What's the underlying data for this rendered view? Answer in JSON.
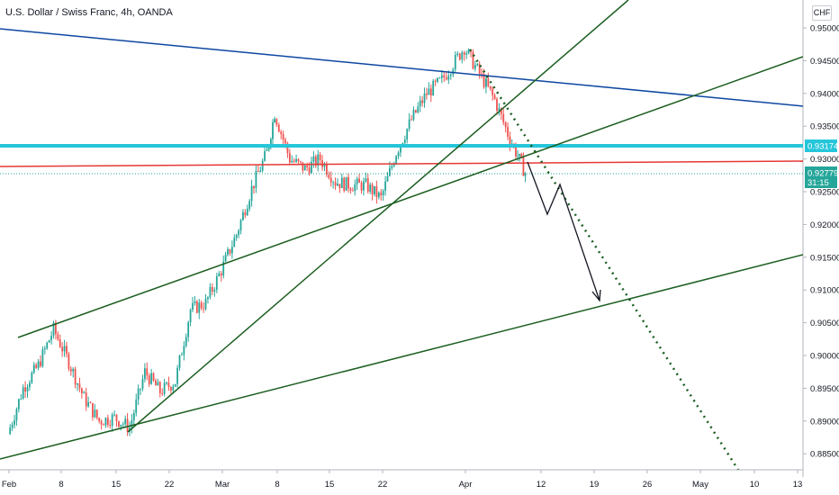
{
  "header": {
    "title": "U.S. Dollar / Swiss Franc, 4h, OANDA",
    "currency": "CHF"
  },
  "colors": {
    "up": "#26a69a",
    "down": "#ef5350",
    "trendline": "#1b5e20",
    "channel_top": "#0d47a1",
    "support_line": "#26c6da",
    "red_line": "#e53935",
    "price_tag": "#26a69a",
    "resistance_tag": "#26c6da"
  },
  "chart_data": {
    "type": "candlestick",
    "symbol": "U.S. Dollar / Swiss Franc",
    "timeframe": "4h",
    "source": "OANDA",
    "x_axis": {
      "ticks": [
        "Feb",
        "8",
        "15",
        "22",
        "Mar",
        "8",
        "15",
        "22",
        "Apr",
        "12",
        "19",
        "26",
        "May",
        "10",
        "13"
      ]
    },
    "y_axis": {
      "range": [
        0.8815,
        0.9535
      ],
      "ticks": [
        "0.95000",
        "0.94500",
        "0.94000",
        "0.93500",
        "0.93000",
        "0.92500",
        "0.92000",
        "0.91500",
        "0.91000",
        "0.90500",
        "0.90000",
        "0.89500",
        "0.89000",
        "0.88500"
      ]
    },
    "price_path": [
      [
        "Feb 1",
        0.888
      ],
      [
        "Feb 3",
        0.895
      ],
      [
        "Feb 5",
        0.8985
      ],
      [
        "Feb 7",
        0.904
      ],
      [
        "Feb 9",
        0.899
      ],
      [
        "Feb 11",
        0.8935
      ],
      [
        "Feb 13",
        0.89
      ],
      [
        "Feb 15",
        0.8905
      ],
      [
        "Feb 17",
        0.889
      ],
      [
        "Feb 19",
        0.8975
      ],
      [
        "Feb 21",
        0.8945
      ],
      [
        "Feb 23",
        0.896
      ],
      [
        "Feb 25",
        0.907
      ],
      [
        "Feb 27",
        0.908
      ],
      [
        "Mar 1",
        0.913
      ],
      [
        "Mar 3",
        0.9185
      ],
      [
        "Mar 5",
        0.9255
      ],
      [
        "Mar 7",
        0.931
      ],
      [
        "Mar 8",
        0.937
      ],
      [
        "Mar 10",
        0.93
      ],
      [
        "Mar 12",
        0.9285
      ],
      [
        "Mar 14",
        0.93
      ],
      [
        "Mar 16",
        0.9265
      ],
      [
        "Mar 18",
        0.926
      ],
      [
        "Mar 20",
        0.926
      ],
      [
        "Mar 22",
        0.924
      ],
      [
        "Mar 24",
        0.931
      ],
      [
        "Mar 26",
        0.936
      ],
      [
        "Mar 28",
        0.94
      ],
      [
        "Mar 30",
        0.942
      ],
      [
        "Apr 1",
        0.947
      ],
      [
        "Apr 3",
        0.943
      ],
      [
        "Apr 5",
        0.939
      ],
      [
        "Apr 7",
        0.933
      ],
      [
        "Apr 8",
        0.9305
      ],
      [
        "Apr 9",
        0.9278
      ]
    ],
    "annotations": [
      {
        "label": "0.93174",
        "value": 0.93174,
        "kind": "horizontal line"
      },
      {
        "label": "0.92779",
        "value": 0.92779,
        "kind": "last price"
      },
      {
        "label": "31:15",
        "kind": "bar countdown"
      }
    ]
  }
}
